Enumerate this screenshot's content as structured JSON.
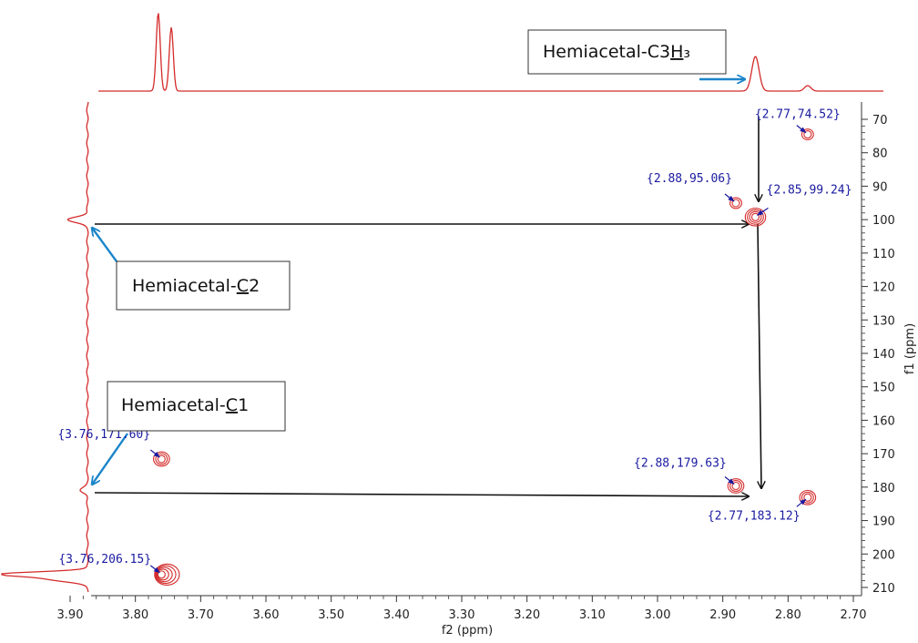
{
  "chart_data": {
    "type": "scatter",
    "title": "",
    "xlabel": "f2 (ppm)",
    "ylabel": "f1 (ppm)",
    "xlim": [
      3.95,
      2.7
    ],
    "ylim": [
      62,
      212
    ],
    "x_reversed": true,
    "x_ticks": [
      "3.90",
      "3.80",
      "3.70",
      "3.60",
      "3.50",
      "3.40",
      "3.30",
      "3.20",
      "3.10",
      "3.00",
      "2.90",
      "2.80",
      "2.70"
    ],
    "y_ticks": [
      "70",
      "80",
      "90",
      "100",
      "110",
      "120",
      "130",
      "140",
      "150",
      "160",
      "170",
      "180",
      "190",
      "200",
      "210"
    ],
    "grid": false,
    "series": [
      {
        "peaks": [
          {
            "x": 2.77,
            "y": 74.52,
            "label": "{2.77,74.52}"
          },
          {
            "x": 2.88,
            "y": 95.06,
            "label": "{2.88,95.06}"
          },
          {
            "x": 2.85,
            "y": 99.24,
            "label": "{2.85,99.24}"
          },
          {
            "x": 3.76,
            "y": 171.6,
            "label": "{3.76,171.60}"
          },
          {
            "x": 2.88,
            "y": 179.63,
            "label": "{2.88,179.63}"
          },
          {
            "x": 2.77,
            "y": 183.12,
            "label": "{2.77,183.12}"
          },
          {
            "x": 3.76,
            "y": 206.15,
            "label": "{3.76,206.15}"
          }
        ]
      }
    ],
    "projection_top": {
      "peaks_ppm": [
        3.76,
        2.85,
        2.77
      ]
    },
    "projection_left": {
      "peaks_ppm": [
        100,
        181,
        206
      ]
    },
    "annotations": [
      {
        "text": "Hemiacetal-C3H₃",
        "prefix": "Hemiacetal-C3",
        "underlined": "H",
        "suffix": "₃"
      },
      {
        "text": "Hemiacetal-C2",
        "prefix": "Hemiacetal-",
        "underlined": "C",
        "suffix": "2"
      },
      {
        "text": "Hemiacetal-C1",
        "prefix": "Hemiacetal-",
        "underlined": "C",
        "suffix": "1"
      }
    ]
  },
  "colors": {
    "contour": "#d42a2a",
    "peak_label": "#1a1aa0",
    "pointer_arrow": "#1b85c9",
    "correlation_arrow": "#111111",
    "axis": "#333333"
  }
}
